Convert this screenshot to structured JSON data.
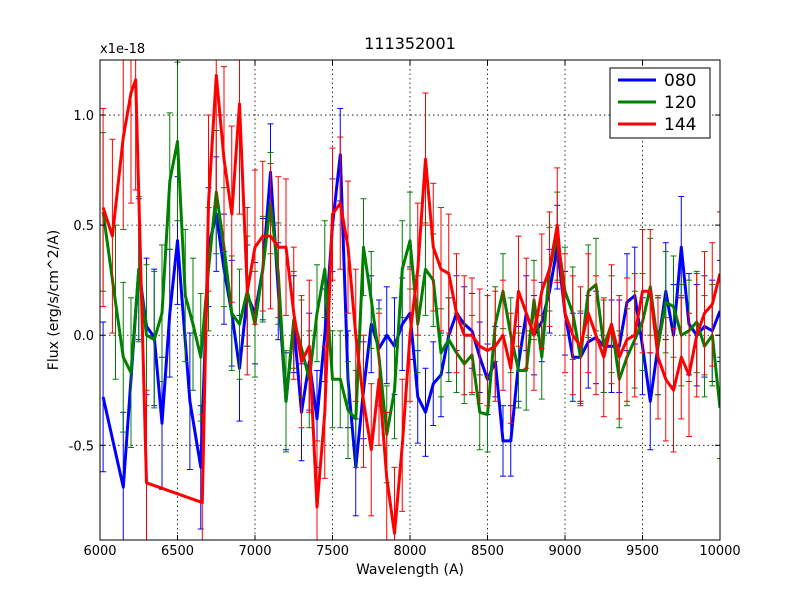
{
  "chart_data": {
    "type": "line",
    "title": "111352001",
    "xlabel": "Wavelength (A)",
    "ylabel": "Flux (erg/s/cm^2/A)",
    "y_offset_label": "x1e-18",
    "xlim": [
      6000,
      10000
    ],
    "ylim": [
      -0.93,
      1.25
    ],
    "xticks": [
      6000,
      6500,
      7000,
      7500,
      8000,
      8500,
      9000,
      9500,
      10000
    ],
    "xtick_labels": [
      "6000",
      "6500",
      "7000",
      "7500",
      "8000",
      "8500",
      "9000",
      "9500",
      "10000"
    ],
    "yticks": [
      -0.5,
      0.0,
      0.5,
      1.0
    ],
    "ytick_labels": [
      "-0.5",
      "0.0",
      "0.5",
      "1.0"
    ],
    "grid": true,
    "legend_position": "top-right",
    "series": [
      {
        "name": "080",
        "color": "#0000ff",
        "x": [
          6020,
          6150,
          6250,
          6300,
          6350,
          6400,
          6450,
          6500,
          6580,
          6650,
          6700,
          6750,
          6800,
          6850,
          6900,
          6950,
          7000,
          7050,
          7100,
          7150,
          7200,
          7250,
          7300,
          7350,
          7400,
          7450,
          7500,
          7550,
          7600,
          7650,
          7700,
          7750,
          7800,
          7850,
          7900,
          7950,
          8000,
          8050,
          8100,
          8150,
          8200,
          8250,
          8300,
          8350,
          8400,
          8450,
          8500,
          8550,
          8600,
          8650,
          8700,
          8750,
          8800,
          8850,
          8900,
          8950,
          9000,
          9050,
          9100,
          9150,
          9200,
          9250,
          9300,
          9350,
          9400,
          9450,
          9500,
          9550,
          9600,
          9650,
          9700,
          9750,
          9800,
          9850,
          9900,
          9950,
          10000
        ],
        "y": [
          -0.28,
          -0.69,
          0.3,
          0.04,
          -0.01,
          -0.4,
          0.1,
          0.43,
          -0.3,
          -0.6,
          0.4,
          0.55,
          0.3,
          0.1,
          -0.15,
          0.18,
          0.1,
          0.3,
          0.74,
          0.2,
          -0.3,
          0.05,
          -0.35,
          -0.12,
          -0.38,
          0.0,
          0.5,
          0.82,
          -0.2,
          -0.6,
          -0.25,
          0.05,
          -0.06,
          0.0,
          -0.05,
          0.05,
          0.1,
          -0.28,
          -0.35,
          -0.22,
          -0.18,
          0.0,
          0.1,
          0.05,
          0.02,
          -0.1,
          -0.2,
          -0.12,
          -0.48,
          -0.48,
          -0.13,
          0.1,
          0.0,
          0.06,
          0.2,
          0.4,
          0.1,
          -0.1,
          -0.1,
          -0.03,
          -0.01,
          -0.05,
          -0.05,
          -0.05,
          0.15,
          0.18,
          -0.05,
          -0.3,
          -0.05,
          0.2,
          0.0,
          0.4,
          0.05,
          0.0,
          0.04,
          0.02,
          0.11
        ],
        "yerr": [
          0.34,
          0.34,
          0.32,
          0.31,
          0.31,
          0.3,
          0.29,
          0.29,
          0.31,
          0.28,
          0.27,
          0.26,
          0.25,
          0.24,
          0.24,
          0.23,
          0.23,
          0.23,
          0.22,
          0.22,
          0.22,
          0.22,
          0.22,
          0.22,
          0.22,
          0.21,
          0.21,
          0.21,
          0.22,
          0.22,
          0.22,
          0.22,
          0.22,
          0.22,
          0.22,
          0.21,
          0.21,
          0.21,
          0.2,
          0.19,
          0.19,
          0.17,
          0.17,
          0.17,
          0.17,
          0.16,
          0.16,
          0.16,
          0.16,
          0.16,
          0.17,
          0.17,
          0.18,
          0.18,
          0.19,
          0.19,
          0.19,
          0.2,
          0.2,
          0.21,
          0.21,
          0.21,
          0.21,
          0.21,
          0.22,
          0.22,
          0.22,
          0.22,
          0.22,
          0.22,
          0.23,
          0.23,
          0.23,
          0.23,
          0.23,
          0.23,
          0.23
        ]
      },
      {
        "name": "120",
        "color": "#008000",
        "x": [
          6020,
          6100,
          6150,
          6200,
          6250,
          6300,
          6350,
          6400,
          6450,
          6500,
          6550,
          6600,
          6650,
          6700,
          6750,
          6800,
          6850,
          6900,
          6950,
          7000,
          7050,
          7100,
          7150,
          7200,
          7250,
          7300,
          7350,
          7400,
          7450,
          7500,
          7550,
          7600,
          7650,
          7700,
          7750,
          7800,
          7850,
          7900,
          7950,
          8000,
          8050,
          8100,
          8150,
          8200,
          8250,
          8300,
          8350,
          8400,
          8450,
          8500,
          8550,
          8600,
          8650,
          8700,
          8750,
          8800,
          8850,
          8900,
          8950,
          9000,
          9050,
          9100,
          9150,
          9200,
          9250,
          9300,
          9350,
          9400,
          9450,
          9500,
          9550,
          9600,
          9650,
          9700,
          9750,
          9800,
          9850,
          9900,
          9950,
          10000
        ],
        "y": [
          0.56,
          0.15,
          -0.1,
          -0.17,
          0.3,
          0.0,
          -0.02,
          0.1,
          0.7,
          0.88,
          0.18,
          0.05,
          -0.1,
          0.3,
          0.65,
          0.4,
          0.1,
          0.05,
          0.2,
          0.05,
          0.3,
          0.6,
          0.28,
          -0.3,
          0.07,
          -0.06,
          -0.2,
          0.1,
          0.3,
          -0.2,
          -0.2,
          -0.34,
          -0.38,
          0.4,
          0.16,
          -0.1,
          -0.45,
          -0.25,
          0.3,
          0.43,
          0.05,
          0.3,
          0.25,
          -0.08,
          -0.02,
          -0.08,
          -0.13,
          -0.09,
          -0.35,
          -0.36,
          0.05,
          0.2,
          0.0,
          -0.16,
          -0.16,
          0.16,
          -0.1,
          0.3,
          0.45,
          0.2,
          0.1,
          -0.1,
          0.2,
          0.23,
          -0.05,
          0.05,
          -0.2,
          -0.1,
          -0.02,
          0.06,
          0.22,
          -0.05,
          0.15,
          0.13,
          0.0,
          0.02,
          0.06,
          -0.05,
          0.0,
          -0.33
        ],
        "yerr": [
          0.36,
          0.35,
          0.34,
          0.34,
          0.33,
          0.32,
          0.31,
          0.31,
          0.31,
          0.36,
          0.3,
          0.3,
          0.29,
          0.28,
          0.28,
          0.27,
          0.26,
          0.25,
          0.25,
          0.24,
          0.24,
          0.23,
          0.23,
          0.23,
          0.22,
          0.22,
          0.22,
          0.22,
          0.22,
          0.22,
          0.22,
          0.22,
          0.22,
          0.22,
          0.22,
          0.22,
          0.22,
          0.22,
          0.22,
          0.22,
          0.22,
          0.21,
          0.21,
          0.2,
          0.19,
          0.18,
          0.18,
          0.18,
          0.17,
          0.17,
          0.17,
          0.17,
          0.17,
          0.17,
          0.18,
          0.18,
          0.19,
          0.19,
          0.2,
          0.2,
          0.21,
          0.21,
          0.21,
          0.21,
          0.21,
          0.22,
          0.22,
          0.22,
          0.22,
          0.22,
          0.22,
          0.22,
          0.23,
          0.23,
          0.23,
          0.23,
          0.23,
          0.23,
          0.23,
          0.23
        ]
      },
      {
        "name": "144",
        "color": "#ff0000",
        "x": [
          6020,
          6080,
          6150,
          6200,
          6230,
          6300,
          6660,
          6700,
          6750,
          6800,
          6850,
          6900,
          6950,
          7000,
          7050,
          7100,
          7150,
          7200,
          7250,
          7300,
          7350,
          7400,
          7450,
          7500,
          7550,
          7600,
          7650,
          7700,
          7750,
          7800,
          7850,
          7900,
          7950,
          8000,
          8050,
          8100,
          8150,
          8200,
          8250,
          8300,
          8350,
          8400,
          8450,
          8500,
          8550,
          8600,
          8650,
          8700,
          8750,
          8800,
          8850,
          8900,
          8950,
          9000,
          9050,
          9100,
          9150,
          9200,
          9250,
          9300,
          9350,
          9400,
          9450,
          9500,
          9550,
          9600,
          9650,
          9700,
          9750,
          9800,
          9850,
          9900,
          9950,
          10000
        ],
        "y": [
          0.58,
          0.45,
          0.9,
          1.1,
          1.16,
          -0.67,
          -0.76,
          0.6,
          1.18,
          0.8,
          0.55,
          1.05,
          0.2,
          0.4,
          0.45,
          0.45,
          0.4,
          0.4,
          0.1,
          -0.12,
          -0.05,
          -0.78,
          -0.35,
          0.55,
          0.6,
          0.4,
          0.0,
          -0.3,
          -0.52,
          -0.2,
          -0.65,
          -0.9,
          -0.5,
          0.0,
          0.3,
          0.8,
          0.4,
          0.3,
          0.28,
          0.1,
          0.0,
          0.0,
          -0.05,
          -0.07,
          -0.05,
          0.0,
          -0.15,
          0.2,
          0.1,
          0.0,
          0.2,
          0.3,
          0.5,
          0.1,
          0.0,
          -0.05,
          0.1,
          0.0,
          -0.1,
          0.05,
          -0.1,
          -0.02,
          0.0,
          0.2,
          0.2,
          -0.1,
          -0.2,
          -0.25,
          -0.1,
          -0.18,
          0.0,
          0.1,
          0.14,
          0.28
        ],
        "yerr": [
          0.45,
          0.44,
          0.42,
          0.5,
          0.5,
          0.42,
          0.4,
          0.4,
          0.6,
          0.42,
          0.4,
          0.5,
          0.38,
          0.35,
          0.34,
          0.33,
          0.32,
          0.31,
          0.3,
          0.3,
          0.3,
          0.3,
          0.3,
          0.3,
          0.3,
          0.3,
          0.3,
          0.3,
          0.3,
          0.3,
          0.3,
          0.3,
          0.3,
          0.3,
          0.3,
          0.3,
          0.29,
          0.28,
          0.27,
          0.27,
          0.27,
          0.26,
          0.26,
          0.25,
          0.25,
          0.25,
          0.25,
          0.25,
          0.25,
          0.25,
          0.26,
          0.26,
          0.26,
          0.27,
          0.27,
          0.27,
          0.27,
          0.27,
          0.27,
          0.27,
          0.28,
          0.28,
          0.28,
          0.28,
          0.28,
          0.28,
          0.28,
          0.28,
          0.28,
          0.28,
          0.28,
          0.28,
          0.28,
          0.28
        ]
      }
    ]
  }
}
